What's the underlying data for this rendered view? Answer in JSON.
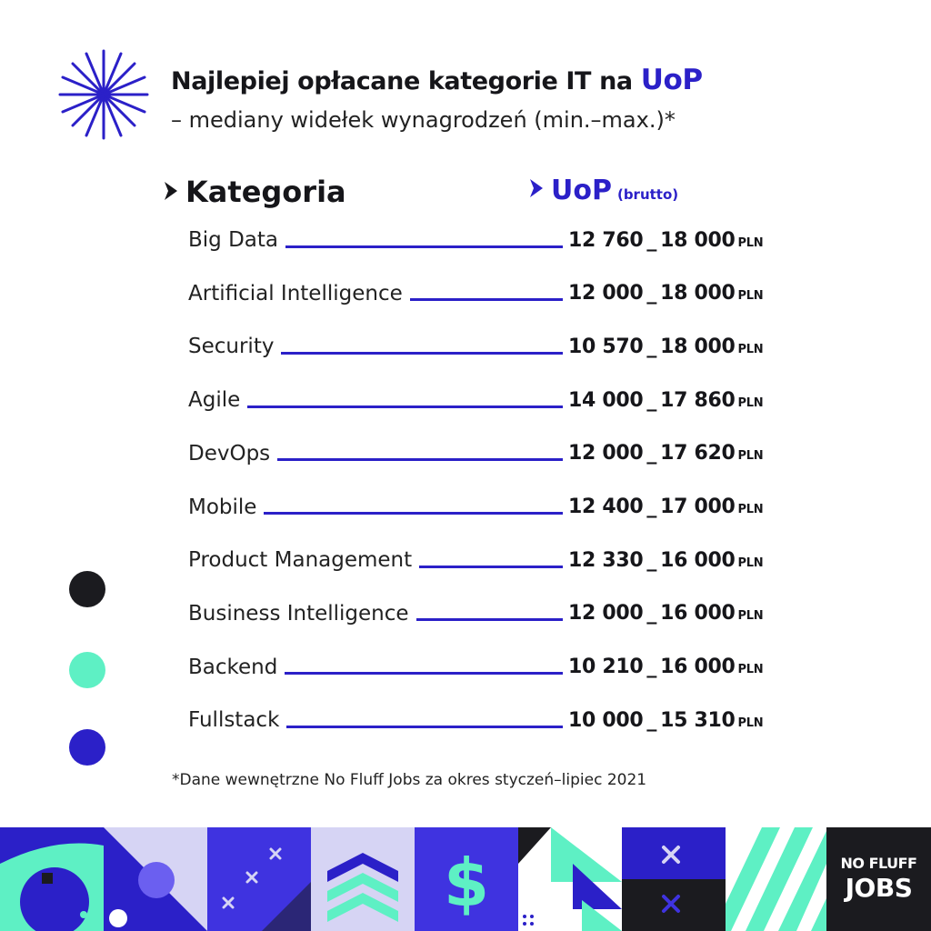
{
  "title": {
    "main": "Najlepiej opłacane kategorie IT na ",
    "accent": "UoP"
  },
  "subtitle": "– mediany widełek wynagrodzeń (min.–max.)*",
  "columns": {
    "category": "Kategoria",
    "uop": "UoP",
    "uop_note": "(brutto)"
  },
  "rows": [
    {
      "category": "Big Data",
      "min": "12 760",
      "max": "18 000",
      "unit": "PLN"
    },
    {
      "category": "Artificial Intelligence",
      "min": "12 000",
      "max": "18 000",
      "unit": "PLN"
    },
    {
      "category": "Security",
      "min": "10 570",
      "max": "18 000",
      "unit": "PLN"
    },
    {
      "category": "Agile",
      "min": "14 000",
      "max": "17 860",
      "unit": "PLN"
    },
    {
      "category": "DevOps",
      "min": "12 000",
      "max": "17 620",
      "unit": "PLN"
    },
    {
      "category": "Mobile",
      "min": "12 400",
      "max": "17 000",
      "unit": "PLN"
    },
    {
      "category": "Product Management",
      "min": "12 330",
      "max": "16 000",
      "unit": "PLN"
    },
    {
      "category": "Business Intelligence",
      "min": "12 000",
      "max": "16 000",
      "unit": "PLN"
    },
    {
      "category": "Backend",
      "min": "10 210",
      "max": "16 000",
      "unit": "PLN"
    },
    {
      "category": "Fullstack",
      "min": "10 000",
      "max": "15 310",
      "unit": "PLN"
    }
  ],
  "range_separator": "_",
  "footnote": "*Dane wewnętrzne No Fluff Jobs za okres styczeń–lipiec 2021",
  "logo": {
    "line1": "NO FLUFF",
    "line2": "JOBS"
  },
  "banner_dollar": "$",
  "colors": {
    "accent_blue": "#2b20c8",
    "mint": "#5ef0c4",
    "dark": "#1b1b1f",
    "lavender": "#d6d4f4"
  },
  "icons": [
    "asterisk-star-icon",
    "chevron-right-icon",
    "dollar-icon",
    "cross-icon"
  ]
}
